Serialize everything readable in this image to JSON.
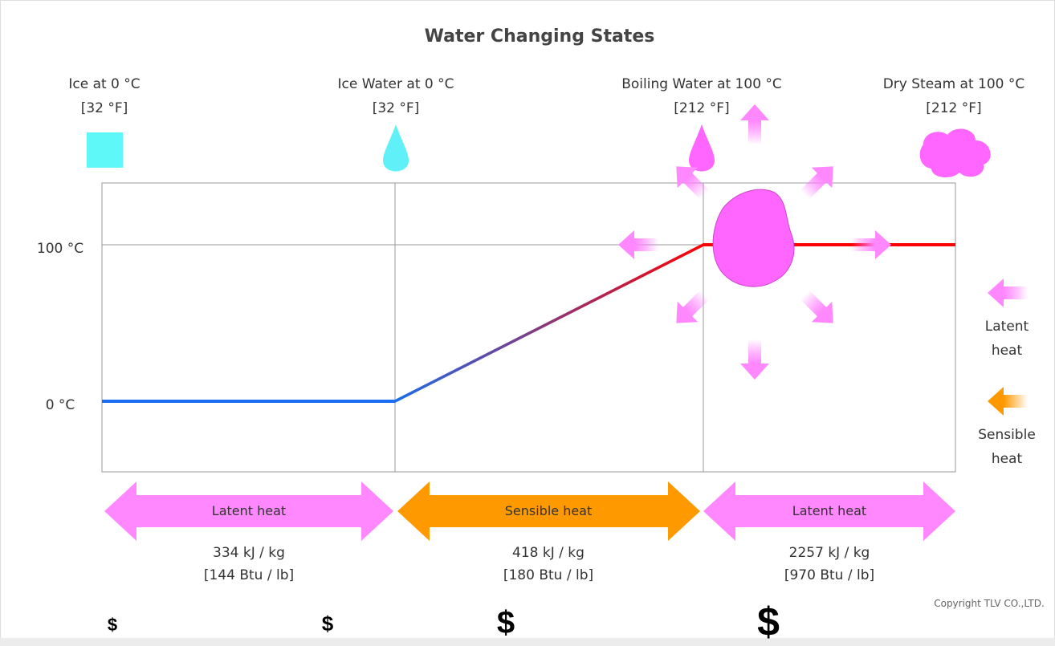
{
  "title": "Water Changing States",
  "states": [
    {
      "name": "Ice at 0 °C",
      "fahrenheit": "[32 °F]"
    },
    {
      "name": "Ice Water at 0 °C",
      "fahrenheit": "[32 °F]"
    },
    {
      "name": "Boiling Water at 100 °C",
      "fahrenheit": "[212 °F]"
    },
    {
      "name": "Dry Steam at 100 °C",
      "fahrenheit": "[212 °F]"
    }
  ],
  "axis_labels": [
    "100 °C",
    "0 °C"
  ],
  "phases": [
    {
      "label": "Latent heat",
      "energy": "334 kJ / kg",
      "energy_imperial": "[144 Btu / lb]"
    },
    {
      "label": "Sensible heat",
      "energy": "418 kJ / kg",
      "energy_imperial": "[180 Btu / lb]"
    },
    {
      "label": "Latent heat",
      "energy": "2257 kJ / kg",
      "energy_imperial": "[970 Btu / lb]"
    }
  ],
  "legend": [
    "Latent heat",
    "Sensible heat"
  ],
  "copyright": "Copyright TLV CO.,LTD.",
  "footer_symbols": [
    "$",
    "$",
    "$",
    "$"
  ]
}
